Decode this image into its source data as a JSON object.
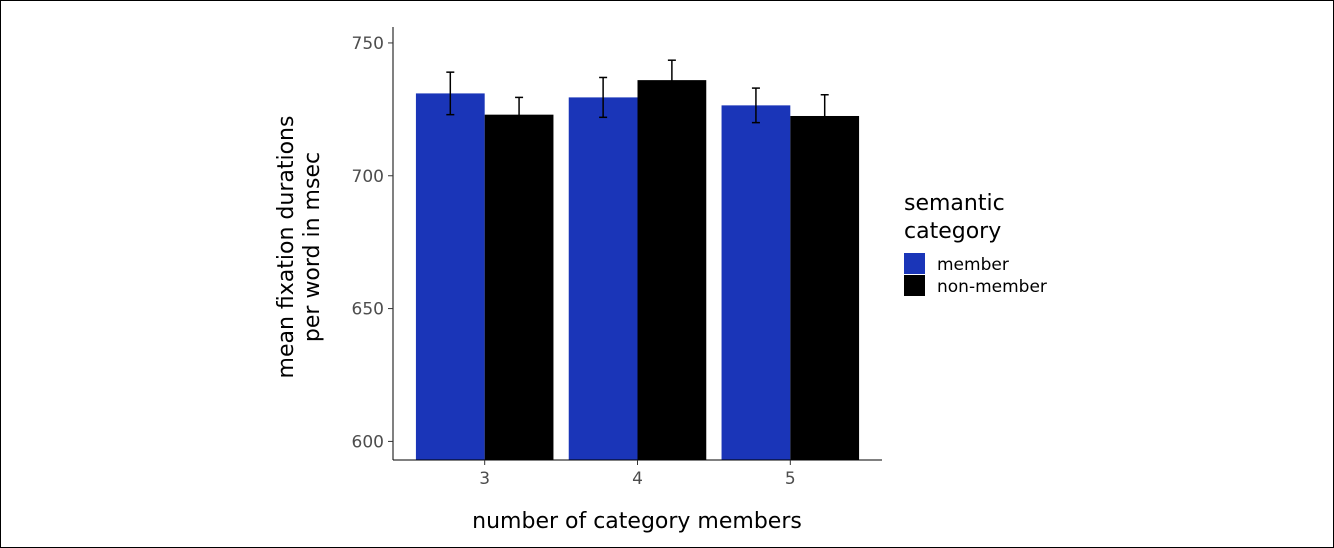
{
  "chart_data": {
    "type": "bar",
    "title": "",
    "xlabel": "number of category members",
    "ylabel_lines": [
      "mean fixation durations",
      "per word in msec"
    ],
    "categories": [
      "3",
      "4",
      "5"
    ],
    "ylim": [
      593,
      756
    ],
    "yticks": [
      600,
      650,
      700,
      750
    ],
    "grid": false,
    "legend": {
      "title_lines": [
        "semantic",
        "category"
      ],
      "placement": "right"
    },
    "series": [
      {
        "name": "member",
        "color": "#1a35b8",
        "values": [
          731,
          729.5,
          726.5
        ],
        "error": [
          8,
          7.5,
          6.5
        ]
      },
      {
        "name": "non-member",
        "color": "#000000",
        "values": [
          723,
          736,
          722.5
        ],
        "error": [
          6.5,
          7.5,
          8
        ]
      }
    ]
  }
}
